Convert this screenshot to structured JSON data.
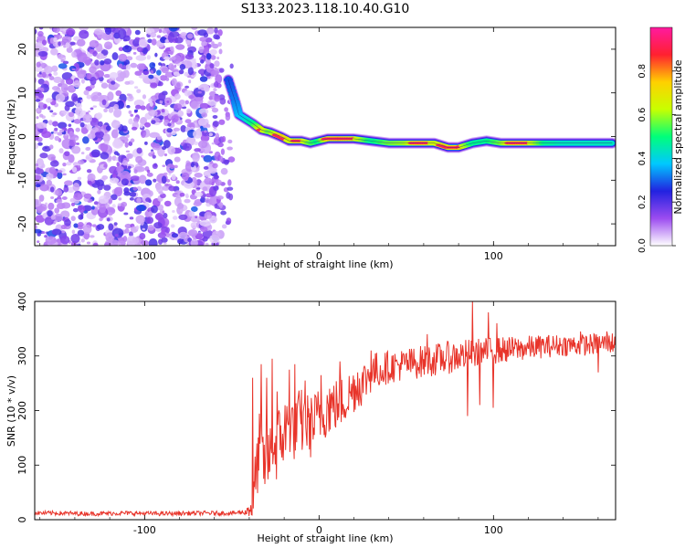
{
  "title": "S133.2023.118.10.40.G10",
  "chart_data": [
    {
      "type": "heatmap",
      "xlabel": "Height of straight line (km)",
      "ylabel": "Frequency (Hz)",
      "xlim": [
        -163,
        170
      ],
      "ylim": [
        -25,
        25
      ],
      "xticks": [
        "-100",
        "0",
        "100"
      ],
      "yticks": [
        "20",
        "10",
        "0",
        "-10",
        "-20"
      ],
      "grid": false,
      "colorbar": {
        "label": "Normalized spectral amplitude",
        "range": [
          0,
          1
        ],
        "ticks": [
          "0.0",
          "0.2",
          "0.4",
          "0.6",
          "0.8"
        ],
        "colors": [
          "#ffffff",
          "#9c4cf0",
          "#2222e0",
          "#00c8ff",
          "#00ff7a",
          "#c8ff00",
          "#ffd000",
          "#ff2030",
          "#ff1aa0"
        ]
      },
      "noise_region_km": [
        -163,
        -58
      ],
      "ridge": [
        {
          "x": -52,
          "y": 13,
          "a": 0.35
        },
        {
          "x": -48,
          "y": 8,
          "a": 0.4
        },
        {
          "x": -46,
          "y": 5,
          "a": 0.45
        },
        {
          "x": -42,
          "y": 4,
          "a": 0.5
        },
        {
          "x": -38,
          "y": 3,
          "a": 0.6
        },
        {
          "x": -33,
          "y": 1.5,
          "a": 0.85
        },
        {
          "x": -28,
          "y": 1,
          "a": 0.7
        },
        {
          "x": -22,
          "y": 0,
          "a": 0.9
        },
        {
          "x": -17,
          "y": -1,
          "a": 0.8
        },
        {
          "x": -10,
          "y": -1,
          "a": 0.85
        },
        {
          "x": -5,
          "y": -1.5,
          "a": 0.7
        },
        {
          "x": 0,
          "y": -1,
          "a": 0.6
        },
        {
          "x": 5,
          "y": -0.5,
          "a": 0.9
        },
        {
          "x": 12,
          "y": -0.5,
          "a": 0.95
        },
        {
          "x": 20,
          "y": -0.5,
          "a": 0.85
        },
        {
          "x": 30,
          "y": -1,
          "a": 0.6
        },
        {
          "x": 40,
          "y": -1.5,
          "a": 0.7
        },
        {
          "x": 50,
          "y": -1.5,
          "a": 0.75
        },
        {
          "x": 58,
          "y": -1.5,
          "a": 0.9
        },
        {
          "x": 66,
          "y": -1.5,
          "a": 0.8
        },
        {
          "x": 74,
          "y": -2.5,
          "a": 0.85
        },
        {
          "x": 80,
          "y": -2.5,
          "a": 0.9
        },
        {
          "x": 88,
          "y": -1.5,
          "a": 0.6
        },
        {
          "x": 96,
          "y": -1,
          "a": 0.6
        },
        {
          "x": 104,
          "y": -1.5,
          "a": 0.7
        },
        {
          "x": 112,
          "y": -1.5,
          "a": 0.9
        },
        {
          "x": 120,
          "y": -1.5,
          "a": 0.85
        },
        {
          "x": 130,
          "y": -1.5,
          "a": 0.6
        },
        {
          "x": 140,
          "y": -1.5,
          "a": 0.55
        },
        {
          "x": 150,
          "y": -1.5,
          "a": 0.55
        },
        {
          "x": 160,
          "y": -1.5,
          "a": 0.55
        },
        {
          "x": 168,
          "y": -1.5,
          "a": 0.55
        }
      ]
    },
    {
      "type": "line",
      "xlabel": "Height of straight line (km)",
      "ylabel": "SNR (10 * v/v)",
      "xlim": [
        -163,
        170
      ],
      "ylim": [
        0,
        400
      ],
      "xticks": [
        "-100",
        "0",
        "100"
      ],
      "yticks": [
        "400",
        "300",
        "200",
        "100",
        "0"
      ],
      "grid": false,
      "color": "#e8342a",
      "series": [
        {
          "values": [
            [
              -163,
              12
            ],
            [
              -150,
              12
            ],
            [
              -130,
              11
            ],
            [
              -110,
              12
            ],
            [
              -90,
              11
            ],
            [
              -70,
              12
            ],
            [
              -50,
              12
            ],
            [
              -42,
              14
            ],
            [
              -38,
              30
            ],
            [
              -36,
              85
            ],
            [
              -34,
              140
            ],
            [
              -32,
              110
            ],
            [
              -30,
              90
            ],
            [
              -28,
              120
            ],
            [
              -25,
              130
            ],
            [
              -22,
              150
            ],
            [
              -20,
              160
            ],
            [
              -15,
              170
            ],
            [
              -10,
              180
            ],
            [
              -5,
              170
            ],
            [
              0,
              190
            ],
            [
              5,
              205
            ],
            [
              10,
              210
            ],
            [
              15,
              220
            ],
            [
              20,
              240
            ],
            [
              25,
              250
            ],
            [
              30,
              270
            ],
            [
              35,
              275
            ],
            [
              40,
              280
            ],
            [
              50,
              285
            ],
            [
              60,
              290
            ],
            [
              70,
              295
            ],
            [
              80,
              300
            ],
            [
              90,
              305
            ],
            [
              100,
              310
            ],
            [
              110,
              312
            ],
            [
              120,
              315
            ],
            [
              130,
              318
            ],
            [
              140,
              320
            ],
            [
              150,
              320
            ],
            [
              160,
              322
            ],
            [
              170,
              325
            ]
          ],
          "jitter": [
            [
              -163,
              4
            ],
            [
              -50,
              4
            ],
            [
              -42,
              5
            ],
            [
              -36,
              60
            ],
            [
              -20,
              70
            ],
            [
              0,
              55
            ],
            [
              20,
              45
            ],
            [
              40,
              30
            ],
            [
              80,
              30
            ],
            [
              100,
              25
            ],
            [
              140,
              20
            ],
            [
              170,
              20
            ]
          ],
          "spikes": [
            [
              -38,
              260
            ],
            [
              -33,
              285
            ],
            [
              -30,
              260
            ],
            [
              -27,
              295
            ],
            [
              -24,
              235
            ],
            [
              -17,
              275
            ],
            [
              -14,
              285
            ],
            [
              -8,
              255
            ],
            [
              1,
              265
            ],
            [
              6,
              240
            ],
            [
              12,
              290
            ],
            [
              22,
              270
            ],
            [
              30,
              310
            ],
            [
              62,
              340
            ],
            [
              88,
              400
            ],
            [
              97,
              380
            ],
            [
              102,
              360
            ],
            [
              85,
              190
            ],
            [
              92,
              210
            ],
            [
              100,
              205
            ],
            [
              160,
              270
            ],
            [
              150,
              345
            ],
            [
              165,
              345
            ]
          ]
        }
      ]
    }
  ]
}
